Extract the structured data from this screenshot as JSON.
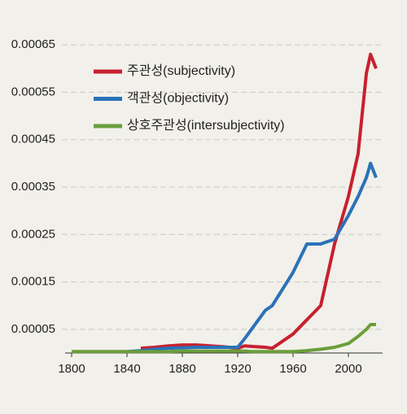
{
  "chart_data": {
    "type": "line",
    "x": [
      1800,
      1810,
      1820,
      1830,
      1840,
      1850,
      1860,
      1870,
      1880,
      1890,
      1900,
      1910,
      1920,
      1925,
      1930,
      1940,
      1945,
      1960,
      1970,
      1980,
      1990,
      2000,
      2007,
      2013,
      2016,
      2020
    ],
    "series": [
      {
        "name": "주관성(subjectivity)",
        "color": "#c8202f",
        "values": [
          null,
          null,
          null,
          null,
          null,
          1e-05,
          1.2e-05,
          1.5e-05,
          1.7e-05,
          1.7e-05,
          1.5e-05,
          1.3e-05,
          1e-05,
          1.5e-05,
          1.4e-05,
          1.2e-05,
          1e-05,
          4e-05,
          7e-05,
          0.0001,
          0.00023,
          0.00033,
          0.00042,
          0.00059,
          0.00063,
          0.0006
        ]
      },
      {
        "name": "객관성(objectivity)",
        "color": "#2a72b8",
        "values": [
          null,
          null,
          null,
          null,
          3e-06,
          5e-06,
          8e-06,
          1e-05,
          1.1e-05,
          1.2e-05,
          1.2e-05,
          1.2e-05,
          1.2e-05,
          3e-05,
          5e-05,
          9e-05,
          0.0001,
          0.00017,
          0.00023,
          0.00023,
          0.00024,
          0.00029,
          0.00033,
          0.00037,
          0.0004,
          0.00037
        ]
      },
      {
        "name": "상호주관성(intersubjectivity)",
        "color": "#6a9e3a",
        "values": [
          3e-06,
          3e-06,
          3e-06,
          3e-06,
          3e-06,
          3e-06,
          3e-06,
          3e-06,
          4e-06,
          4e-06,
          4e-06,
          4e-06,
          4e-06,
          4e-06,
          3e-06,
          3e-06,
          3e-06,
          3e-06,
          5e-06,
          8e-06,
          1.2e-05,
          2e-05,
          3.5e-05,
          5e-05,
          6e-05,
          6e-05
        ]
      }
    ],
    "xlim": [
      1800,
      2020
    ],
    "xticks": [
      1800,
      1840,
      1880,
      1920,
      1960,
      2000
    ],
    "ylim": [
      0,
      0.0007
    ],
    "yticks": [
      5e-05,
      0.00015,
      0.00025,
      0.00035,
      0.00045,
      0.00055,
      0.00065
    ],
    "grid": true,
    "legend": "upper-left"
  }
}
